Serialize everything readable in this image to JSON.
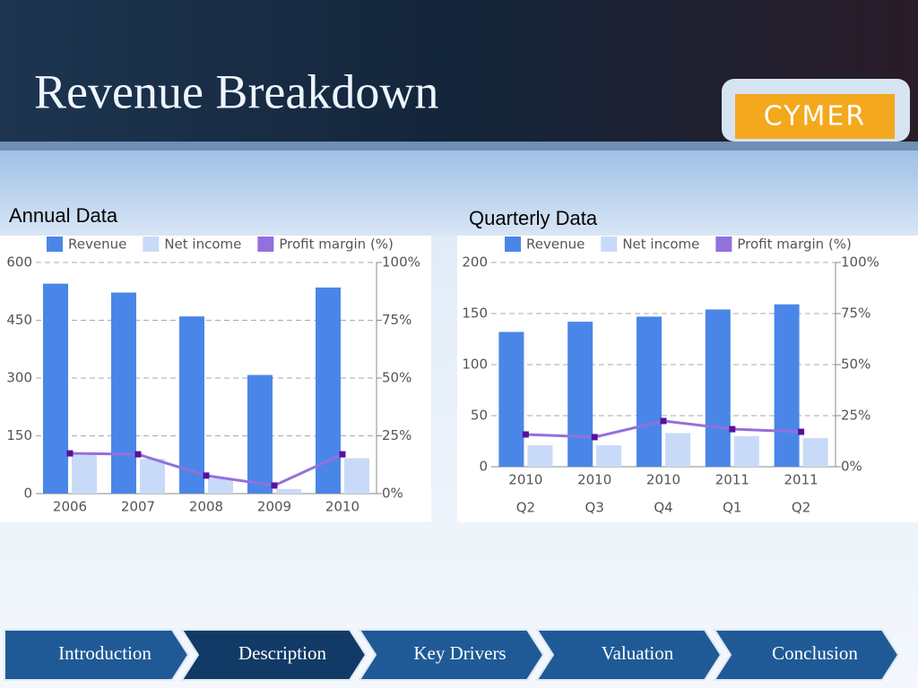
{
  "title": "Revenue Breakdown",
  "logo": "CYMER",
  "nav": [
    "Introduction",
    "Description",
    "Key Drivers",
    "Valuation",
    "Conclusion"
  ],
  "nav_active": 1,
  "chart_data": [
    {
      "type": "bar_line",
      "title": "Annual Data",
      "categories": [
        "2006",
        "2007",
        "2008",
        "2009",
        "2010"
      ],
      "series": [
        {
          "name": "Revenue",
          "color": "#4a86e8",
          "values": [
            545,
            522,
            460,
            308,
            535
          ]
        },
        {
          "name": "Net income",
          "color": "#c9daf8",
          "values": [
            100,
            90,
            40,
            12,
            92
          ]
        },
        {
          "name": "Profit margin (%)",
          "color": "#9370db",
          "marker_color": "#5a0fa0",
          "axis": "y2",
          "values": [
            17.4,
            17,
            7.8,
            3.5,
            17
          ]
        }
      ],
      "ylim": [
        0,
        600
      ],
      "yticks": [
        0,
        150,
        300,
        450,
        600
      ],
      "y2lim": [
        0,
        100
      ],
      "y2ticks": [
        {
          "value": 0,
          "label": "0%"
        },
        {
          "value": 25,
          "label": "25%"
        },
        {
          "value": 50,
          "label": "50%"
        },
        {
          "value": 75,
          "label": "75%"
        },
        {
          "value": 100,
          "label": "100%"
        }
      ],
      "grid": true,
      "legend": "top"
    },
    {
      "type": "bar_line",
      "title": "Quarterly Data",
      "categories": [
        [
          "2010",
          "Q2"
        ],
        [
          "2010",
          "Q3"
        ],
        [
          "2010",
          "Q4"
        ],
        [
          "2011",
          "Q1"
        ],
        [
          "2011",
          "Q2"
        ]
      ],
      "series": [
        {
          "name": "Revenue",
          "color": "#4a86e8",
          "values": [
            132,
            142,
            147,
            154,
            159
          ]
        },
        {
          "name": "Net income",
          "color": "#c9daf8",
          "values": [
            21,
            21,
            33,
            30,
            28
          ]
        },
        {
          "name": "Profit margin (%)",
          "color": "#9370db",
          "marker_color": "#5a0fa0",
          "axis": "y2",
          "values": [
            15.8,
            14.5,
            22.4,
            18.4,
            17.1
          ]
        }
      ],
      "ylim": [
        0,
        200
      ],
      "yticks": [
        0,
        50,
        100,
        150,
        200
      ],
      "y2lim": [
        0,
        100
      ],
      "y2ticks": [
        {
          "value": 0,
          "label": "0%"
        },
        {
          "value": 25,
          "label": "25%"
        },
        {
          "value": 50,
          "label": "50%"
        },
        {
          "value": 75,
          "label": "75%"
        },
        {
          "value": 100,
          "label": "100%"
        }
      ],
      "grid": true,
      "legend": "top"
    }
  ]
}
